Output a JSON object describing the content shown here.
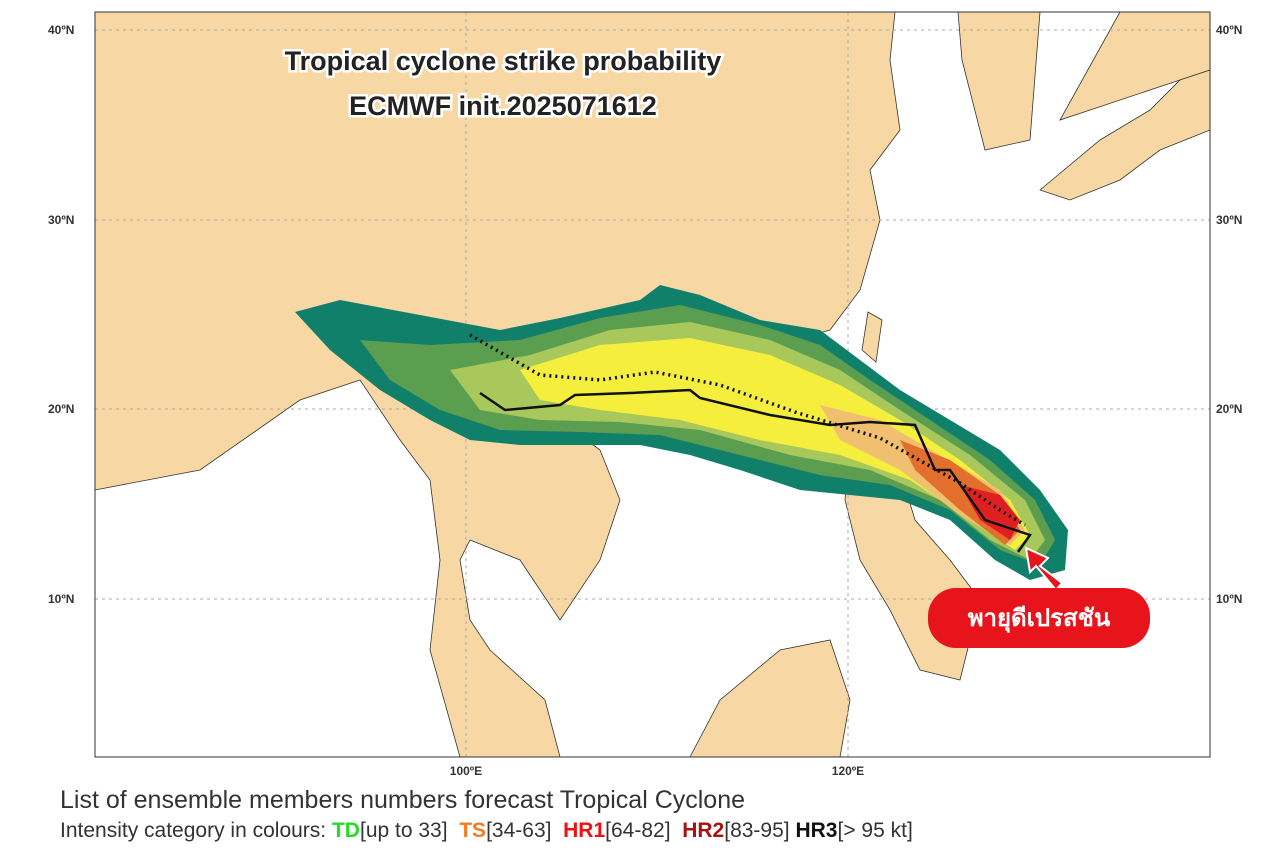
{
  "title": [
    "Tropical cyclone strike probability",
    "ECMWF init.2025071612"
  ],
  "lat_labels": [
    "40ºN",
    "30ºN",
    "20ºN",
    "10ºN"
  ],
  "lon_labels": [
    "100ºE",
    "120ºE"
  ],
  "callout": "พายุดีเปรสชัน",
  "legend": {
    "line1": "List of ensemble members numbers forecast Tropical Cyclone",
    "prefix": "Intensity category in colours:",
    "categories": [
      {
        "name": "TD",
        "range": "[up to 33]"
      },
      {
        "name": "TS",
        "range": "[34-63]"
      },
      {
        "name": "HR1",
        "range": "[64-82]"
      },
      {
        "name": "HR2",
        "range": "[83-95]"
      },
      {
        "name": "HR3",
        "range": "[> 95 kt]"
      }
    ]
  }
}
